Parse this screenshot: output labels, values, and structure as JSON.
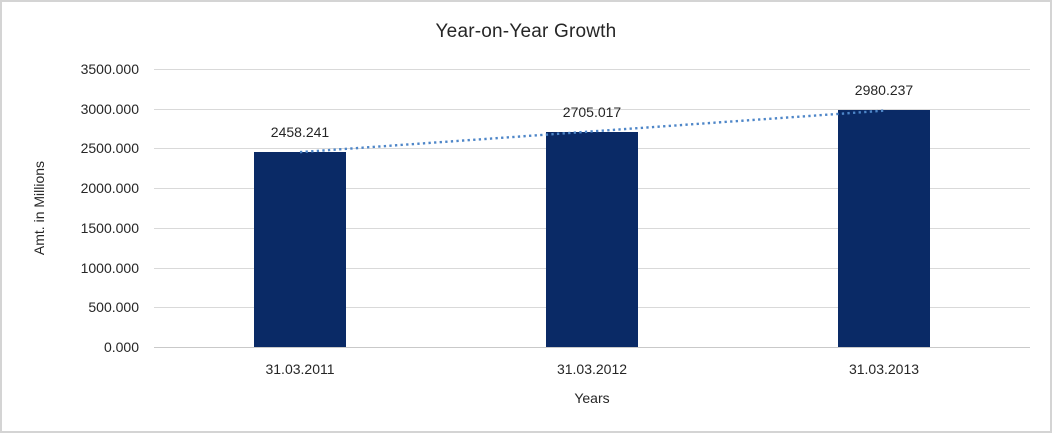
{
  "chart_data": {
    "type": "bar",
    "title": "Year-on-Year Growth",
    "xlabel": "Years",
    "ylabel": "Amt. in Millions",
    "categories": [
      "31.03.2011",
      "31.03.2012",
      "31.03.2013"
    ],
    "values": [
      2458.241,
      2705.017,
      2980.237
    ],
    "data_labels": [
      "2458.241",
      "2705.017",
      "2980.237"
    ],
    "y_ticks": [
      "0.000",
      "500.000",
      "1000.000",
      "1500.000",
      "2000.000",
      "2500.000",
      "3000.000",
      "3500.000"
    ],
    "ylim": [
      0,
      3500
    ],
    "grid": true,
    "legend_position": "none",
    "trendline": {
      "type": "linear",
      "style": "dotted"
    },
    "colors": {
      "bar": "#0a2a66",
      "trendline": "#4e86c8",
      "gridline": "#d9d9d9",
      "axis_line": "#c9c9c9",
      "text": "#262626"
    }
  }
}
